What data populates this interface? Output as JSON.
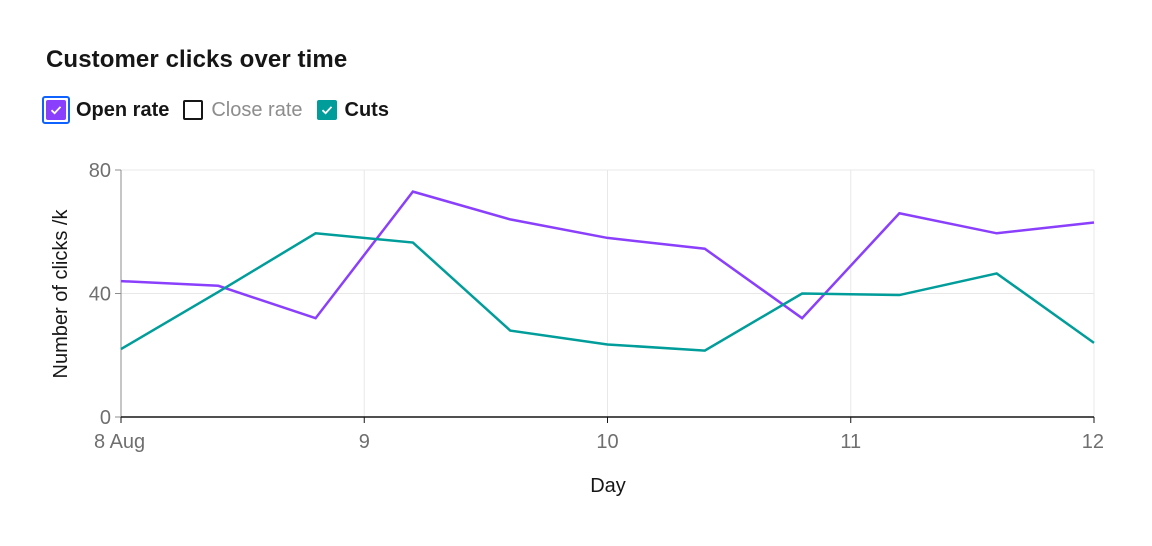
{
  "chart_data": {
    "type": "line",
    "title": "Customer clicks over time",
    "xlabel": "Day",
    "ylabel": "Number of clicks /k",
    "ylim": [
      0,
      80
    ],
    "yticks": [
      "0",
      "40",
      "80"
    ],
    "xlim": [
      "2023-08-08",
      "2023-08-12"
    ],
    "xticks": [
      {
        "date": "2023-08-08",
        "label": "8 Aug"
      },
      {
        "date": "2023-08-09",
        "label": "9"
      },
      {
        "date": "2023-08-10",
        "label": "10"
      },
      {
        "date": "2023-08-11",
        "label": "11"
      },
      {
        "date": "2023-08-12",
        "label": "12"
      }
    ],
    "grid": true,
    "legend_position": "top-left",
    "series": [
      {
        "name": "Open rate",
        "color": "#8a3ffc",
        "visible": true,
        "points": [
          [
            "2023-08-08T00:00",
            44
          ],
          [
            "2023-08-08T09:36",
            42.5
          ],
          [
            "2023-08-08T19:12",
            32
          ],
          [
            "2023-08-09T04:48",
            73
          ],
          [
            "2023-08-09T14:24",
            64
          ],
          [
            "2023-08-10T00:00",
            58
          ],
          [
            "2023-08-10T09:36",
            54.5
          ],
          [
            "2023-08-10T19:12",
            32
          ],
          [
            "2023-08-11T04:48",
            66
          ],
          [
            "2023-08-11T14:24",
            59.5
          ],
          [
            "2023-08-12T00:00",
            63
          ]
        ]
      },
      {
        "name": "Close rate",
        "color": "#161616",
        "visible": false,
        "points": []
      },
      {
        "name": "Cuts",
        "color": "#009d9a",
        "visible": true,
        "points": [
          [
            "2023-08-08T00:00",
            22
          ],
          [
            "2023-08-08T09:36",
            40.5
          ],
          [
            "2023-08-08T19:12",
            59.5
          ],
          [
            "2023-08-09T04:48",
            56.5
          ],
          [
            "2023-08-09T14:24",
            28
          ],
          [
            "2023-08-10T00:00",
            23.5
          ],
          [
            "2023-08-10T09:36",
            21.5
          ],
          [
            "2023-08-10T19:12",
            40
          ],
          [
            "2023-08-11T04:48",
            39.5
          ],
          [
            "2023-08-11T14:24",
            46.5
          ],
          [
            "2023-08-12T00:00",
            24
          ]
        ]
      }
    ]
  }
}
